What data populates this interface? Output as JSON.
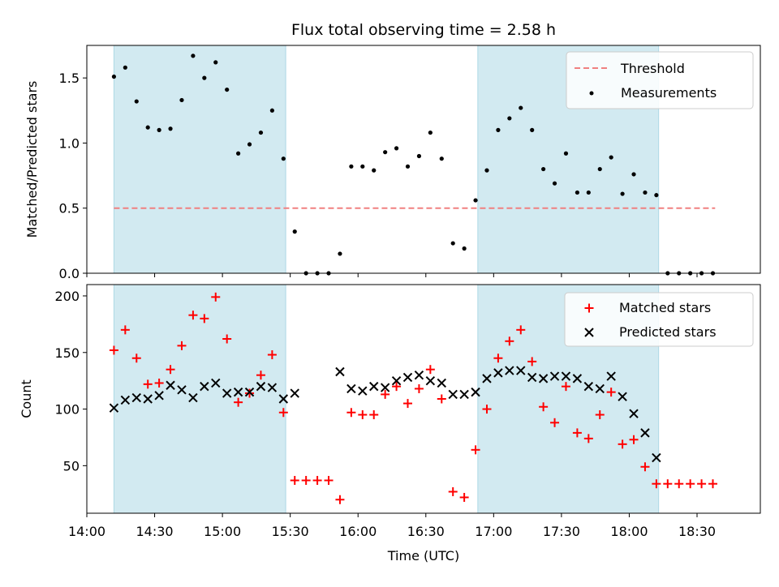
{
  "chart_data": [
    {
      "type": "scatter",
      "title": "Flux total observing time = 2.58 h",
      "xlabel": "",
      "ylabel": "Matched/Predicted stars",
      "ylim": [
        0,
        1.75
      ],
      "yticks": [
        "0.0",
        "0.5",
        "1.0",
        "1.5"
      ],
      "legend_position": "top-right",
      "threshold": {
        "name": "Threshold",
        "value": 0.5,
        "x_range": [
          "14:12",
          "18:38"
        ],
        "color": "#f08080"
      },
      "series": [
        {
          "name": "Measurements",
          "color": "#000000",
          "marker": "dot",
          "x": [
            "14:12",
            "14:17",
            "14:22",
            "14:27",
            "14:32",
            "14:37",
            "14:42",
            "14:47",
            "14:52",
            "14:57",
            "15:02",
            "15:07",
            "15:12",
            "15:17",
            "15:22",
            "15:27",
            "15:32",
            "15:37",
            "15:42",
            "15:47",
            "15:52",
            "15:57",
            "16:02",
            "16:07",
            "16:12",
            "16:17",
            "16:22",
            "16:27",
            "16:32",
            "16:37",
            "16:42",
            "16:47",
            "16:52",
            "16:57",
            "17:02",
            "17:07",
            "17:12",
            "17:17",
            "17:22",
            "17:27",
            "17:32",
            "17:37",
            "17:42",
            "17:47",
            "17:52",
            "17:57",
            "18:02",
            "18:07",
            "18:12",
            "18:17",
            "18:22",
            "18:27",
            "18:32",
            "18:37"
          ],
          "y": [
            1.51,
            1.58,
            1.32,
            1.12,
            1.1,
            1.11,
            1.33,
            1.67,
            1.5,
            1.62,
            1.41,
            0.92,
            0.99,
            1.08,
            1.25,
            0.88,
            0.32,
            0,
            0,
            0,
            0.15,
            0.82,
            0.82,
            0.79,
            0.93,
            0.96,
            0.82,
            0.9,
            1.08,
            0.88,
            0.23,
            0.19,
            0.56,
            0.79,
            1.1,
            1.19,
            1.27,
            1.1,
            0.8,
            0.69,
            0.92,
            0.62,
            0.62,
            0.8,
            0.89,
            0.61,
            0.76,
            0.62,
            0.6,
            0,
            0,
            0,
            0,
            0
          ]
        }
      ],
      "shaded_intervals": [
        [
          "14:12",
          "15:28"
        ],
        [
          "16:53",
          "18:13"
        ]
      ],
      "shade_color": "#add8e6"
    },
    {
      "type": "scatter",
      "xlabel": "Time (UTC)",
      "ylabel": "Count",
      "ylim": [
        8,
        210
      ],
      "yticks": [
        "50",
        "100",
        "150",
        "200"
      ],
      "xticks": [
        "14:00",
        "14:30",
        "15:00",
        "15:30",
        "16:00",
        "16:30",
        "17:00",
        "17:30",
        "18:00",
        "18:30"
      ],
      "xlim": [
        "14:00",
        "18:58"
      ],
      "legend_position": "top-right",
      "series": [
        {
          "name": "Matched stars",
          "color": "#ff0000",
          "marker": "plus",
          "x": [
            "14:12",
            "14:17",
            "14:22",
            "14:27",
            "14:32",
            "14:37",
            "14:42",
            "14:47",
            "14:52",
            "14:57",
            "15:02",
            "15:07",
            "15:12",
            "15:17",
            "15:22",
            "15:27",
            "15:32",
            "15:37",
            "15:42",
            "15:47",
            "15:52",
            "15:57",
            "16:02",
            "16:07",
            "16:12",
            "16:17",
            "16:22",
            "16:27",
            "16:32",
            "16:37",
            "16:42",
            "16:47",
            "16:52",
            "16:57",
            "17:02",
            "17:07",
            "17:12",
            "17:17",
            "17:22",
            "17:27",
            "17:32",
            "17:37",
            "17:42",
            "17:47",
            "17:52",
            "17:57",
            "18:02",
            "18:07",
            "18:12",
            "18:17",
            "18:22",
            "18:27",
            "18:32",
            "18:37"
          ],
          "y": [
            152,
            170,
            145,
            122,
            123,
            135,
            156,
            183,
            180,
            199,
            162,
            106,
            114,
            130,
            148,
            97,
            37,
            37,
            37,
            37,
            20,
            97,
            95,
            95,
            113,
            120,
            105,
            118,
            135,
            109,
            27,
            22,
            64,
            100,
            145,
            160,
            170,
            142,
            102,
            88,
            120,
            79,
            74,
            95,
            115,
            69,
            73,
            49,
            34,
            34,
            34,
            34,
            34,
            34
          ]
        },
        {
          "name": "Predicted stars",
          "color": "#000000",
          "marker": "x",
          "x": [
            "14:12",
            "14:17",
            "14:22",
            "14:27",
            "14:32",
            "14:37",
            "14:42",
            "14:47",
            "14:52",
            "14:57",
            "15:02",
            "15:07",
            "15:12",
            "15:17",
            "15:22",
            "15:27",
            "15:32",
            "15:52",
            "15:57",
            "16:02",
            "16:07",
            "16:12",
            "16:17",
            "16:22",
            "16:27",
            "16:32",
            "16:37",
            "16:42",
            "16:47",
            "16:52",
            "16:57",
            "17:02",
            "17:07",
            "17:12",
            "17:17",
            "17:22",
            "17:27",
            "17:32",
            "17:37",
            "17:42",
            "17:47",
            "17:52",
            "17:57",
            "18:02",
            "18:07",
            "18:12"
          ],
          "y": [
            101,
            108,
            110,
            109,
            112,
            121,
            117,
            110,
            120,
            123,
            114,
            115,
            115,
            120,
            119,
            109,
            114,
            133,
            118,
            116,
            120,
            119,
            125,
            128,
            130,
            125,
            123,
            113,
            113,
            115,
            127,
            132,
            134,
            134,
            128,
            127,
            129,
            129,
            127,
            120,
            118,
            129,
            111,
            96,
            79,
            57
          ]
        }
      ],
      "shaded_intervals": [
        [
          "14:12",
          "15:28"
        ],
        [
          "16:53",
          "18:13"
        ]
      ],
      "shade_color": "#add8e6"
    }
  ]
}
